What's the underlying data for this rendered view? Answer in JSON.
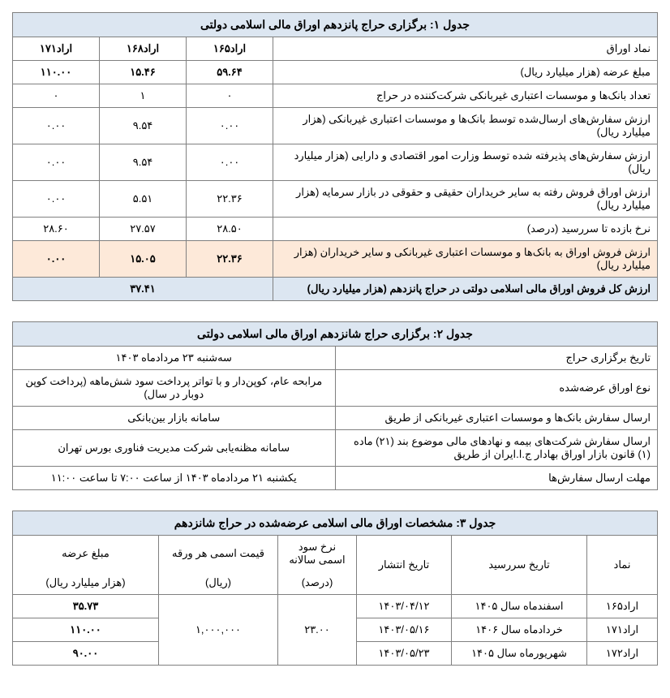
{
  "table1": {
    "title": "جدول ۱: برگزاری حراج پانزدهم اوراق مالی اسلامی دولتی",
    "headers": [
      "نماد اوراق",
      "اراد۱۶۵",
      "اراد۱۶۸",
      "اراد۱۷۱"
    ],
    "rows": [
      {
        "label": "مبلغ عرضه (هزار میلیارد ریال)",
        "v": [
          "۵۹.۶۴",
          "۱۵.۴۶",
          "۱۱۰.۰۰"
        ],
        "bold": true
      },
      {
        "label": "تعداد بانک‌ها و موسسات اعتباری غیربانکی شرکت‌کننده در حراج",
        "v": [
          "۰",
          "۱",
          "۰"
        ]
      },
      {
        "label": "ارزش سفارش‌های ارسال‌شده توسط بانک‌ها و موسسات اعتباری غیربانکی (هزار میلیارد ریال)",
        "v": [
          "۰.۰۰",
          "۹.۵۴",
          "۰.۰۰"
        ]
      },
      {
        "label": "ارزش سفارش‌های پذیرفته شده توسط وزارت امور اقتصادی و دارایی (هزار میلیارد ریال)",
        "v": [
          "۰.۰۰",
          "۹.۵۴",
          "۰.۰۰"
        ]
      },
      {
        "label": "ارزش اوراق فروش رفته به سایر خریداران حقیقی و حقوقی در بازار سرمایه (هزار میلیارد ریال)",
        "v": [
          "۲۲.۳۶",
          "۵.۵۱",
          "۰.۰۰"
        ]
      },
      {
        "label": "نرخ بازده تا سررسید (درصد)",
        "v": [
          "۲۸.۵۰",
          "۲۷.۵۷",
          "۲۸.۶۰"
        ]
      }
    ],
    "pinkRow": {
      "label": "ارزش فروش اوراق به بانک‌ها و موسسات اعتباری غیربانکی و سایر خریداران (هزار میلیارد ریال)",
      "v": [
        "۲۲.۳۶",
        "۱۵.۰۵",
        "۰.۰۰"
      ]
    },
    "totalRow": {
      "label": "ارزش کل فروش اوراق مالی اسلامی دولتی در حراج پانزدهم (هزار میلیارد ریال)",
      "value": "۳۷.۴۱"
    }
  },
  "table2": {
    "title": "جدول ۲: برگزاری حراج شانزدهم اوراق مالی اسلامی دولتی",
    "rows": [
      {
        "label": "تاریخ برگزاری حراج",
        "value": "سه‌شنبه ۲۳ مردادماه ۱۴۰۳"
      },
      {
        "label": "نوع اوراق عرضه‌شده",
        "value": "مرابحه عام، کوپن‌دار و با تواتر پرداخت سود شش‌ماهه (پرداخت کوپن دوبار در سال)"
      },
      {
        "label": "ارسال سفارش بانک‌ها و موسسات اعتباری غیربانکی از طریق",
        "value": "سامانه بازار بین‌بانکی"
      },
      {
        "label": "ارسال سفارش شرکت‌های بیمه و نهادهای مالی موضوع بند (۲۱) ماده (۱) قانون بازار اوراق بهادار ج.ا.ایران از طریق",
        "value": "سامانه مظنه‌یابی شرکت مدیریت فناوری بورس تهران"
      },
      {
        "label": "مهلت ارسال سفارش‌ها",
        "value": "یکشنبه ۲۱ مردادماه ۱۴۰۳ از ساعت ۷:۰۰ تا ساعت ۱۱:۰۰"
      }
    ]
  },
  "table3": {
    "title": "جدول ۳: مشخصات اوراق مالی اسلامی عرضه‌شده در حراج شانزدهم",
    "headers": {
      "symbol": "نماد",
      "maturity": "تاریخ سررسید",
      "issue": "تاریخ انتشار",
      "rate": "نرخ سود اسمی سالانه",
      "rateUnit": "(درصد)",
      "price": "قیمت اسمی هر ورقه",
      "priceUnit": "(ریال)",
      "amount": "مبلغ عرضه",
      "amountUnit": "(هزار میلیارد ریال)"
    },
    "shared": {
      "rate": "۲۳.۰۰",
      "price": "۱,۰۰۰,۰۰۰"
    },
    "rows": [
      {
        "symbol": "اراد۱۶۵",
        "maturity": "اسفندماه سال ۱۴۰۵",
        "issue": "۱۴۰۳/۰۴/۱۲",
        "amount": "۳۵.۷۳"
      },
      {
        "symbol": "اراد۱۷۱",
        "maturity": "خردادماه سال ۱۴۰۶",
        "issue": "۱۴۰۳/۰۵/۱۶",
        "amount": "۱۱۰.۰۰"
      },
      {
        "symbol": "اراد۱۷۲",
        "maturity": "شهریورماه سال ۱۴۰۵",
        "issue": "۱۴۰۳/۰۵/۲۳",
        "amount": "۹۰.۰۰"
      }
    ]
  }
}
